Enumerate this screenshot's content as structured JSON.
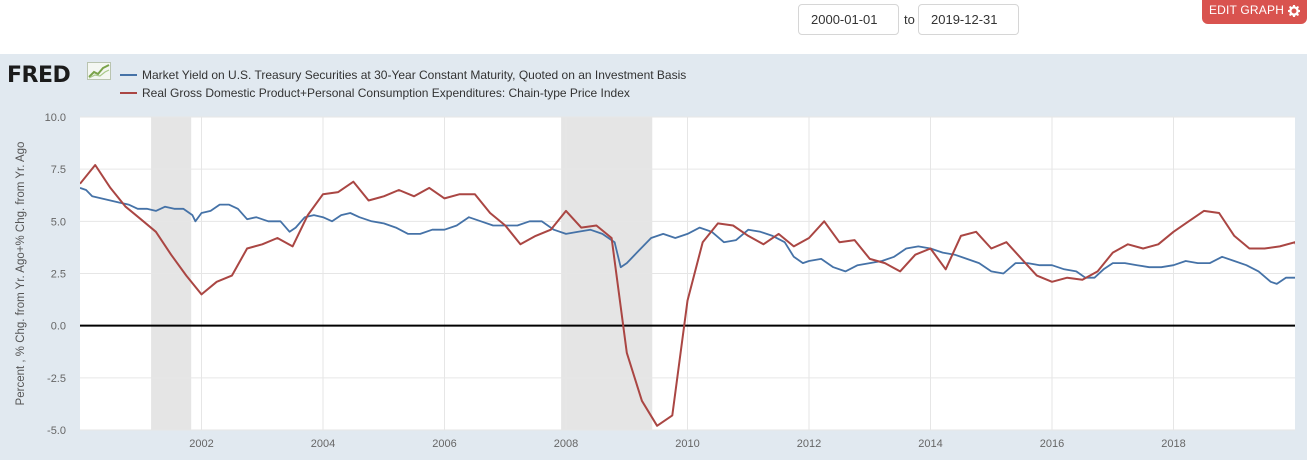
{
  "controls": {
    "start_date": "2000-01-01",
    "to_label": "to",
    "end_date": "2019-12-31",
    "edit_graph_label": "EDIT GRAPH"
  },
  "logo": {
    "text": "FRED",
    "icon": "chart-trend-icon"
  },
  "colors": {
    "series1": "#4572a7",
    "series2": "#aa4643",
    "background": "#e1e9f0",
    "recession": "#e5e5e5",
    "button": "#d9534f"
  },
  "chart_data": {
    "type": "line",
    "title": "",
    "xlabel": "",
    "ylabel": "Percent , % Chg. from Yr. Ago+% Chg. from Yr. Ago",
    "xlim": [
      2000.0,
      2020.0
    ],
    "ylim": [
      -5.0,
      10.0
    ],
    "y_ticks": [
      "10.0",
      "7.5",
      "5.0",
      "2.5",
      "0.0",
      "-2.5",
      "-5.0"
    ],
    "y_tick_values": [
      10,
      7.5,
      5,
      2.5,
      0,
      -2.5,
      -5
    ],
    "x_ticks": [
      "2002",
      "2004",
      "2006",
      "2008",
      "2010",
      "2012",
      "2014",
      "2016",
      "2018"
    ],
    "x_tick_values": [
      2002,
      2004,
      2006,
      2008,
      2010,
      2012,
      2014,
      2016,
      2018
    ],
    "grid": true,
    "reference_line": 0,
    "recessions": [
      [
        2001.17,
        2001.83
      ],
      [
        2007.92,
        2009.42
      ]
    ],
    "legend_position": "top-left",
    "series": [
      {
        "name": "Market Yield on U.S. Treasury Securities at 30-Year Constant Maturity, Quoted on an Investment Basis",
        "color": "#4572a7",
        "points": [
          [
            2000.0,
            6.6
          ],
          [
            2000.1,
            6.5
          ],
          [
            2000.2,
            6.2
          ],
          [
            2000.35,
            6.1
          ],
          [
            2000.5,
            6.0
          ],
          [
            2000.65,
            5.9
          ],
          [
            2000.8,
            5.8
          ],
          [
            2000.95,
            5.6
          ],
          [
            2001.1,
            5.6
          ],
          [
            2001.25,
            5.5
          ],
          [
            2001.4,
            5.7
          ],
          [
            2001.55,
            5.6
          ],
          [
            2001.7,
            5.6
          ],
          [
            2001.85,
            5.3
          ],
          [
            2001.9,
            5.0
          ],
          [
            2002.0,
            5.4
          ],
          [
            2002.15,
            5.5
          ],
          [
            2002.3,
            5.8
          ],
          [
            2002.45,
            5.8
          ],
          [
            2002.6,
            5.6
          ],
          [
            2002.75,
            5.1
          ],
          [
            2002.9,
            5.2
          ],
          [
            2003.1,
            5.0
          ],
          [
            2003.3,
            5.0
          ],
          [
            2003.45,
            4.5
          ],
          [
            2003.55,
            4.7
          ],
          [
            2003.7,
            5.2
          ],
          [
            2003.85,
            5.3
          ],
          [
            2004.0,
            5.2
          ],
          [
            2004.15,
            5.0
          ],
          [
            2004.3,
            5.3
          ],
          [
            2004.45,
            5.4
          ],
          [
            2004.6,
            5.2
          ],
          [
            2004.8,
            5.0
          ],
          [
            2005.0,
            4.9
          ],
          [
            2005.2,
            4.7
          ],
          [
            2005.4,
            4.4
          ],
          [
            2005.6,
            4.4
          ],
          [
            2005.8,
            4.6
          ],
          [
            2006.0,
            4.6
          ],
          [
            2006.2,
            4.8
          ],
          [
            2006.4,
            5.2
          ],
          [
            2006.6,
            5.0
          ],
          [
            2006.8,
            4.8
          ],
          [
            2007.0,
            4.8
          ],
          [
            2007.2,
            4.8
          ],
          [
            2007.4,
            5.0
          ],
          [
            2007.6,
            5.0
          ],
          [
            2007.8,
            4.6
          ],
          [
            2008.0,
            4.4
          ],
          [
            2008.2,
            4.5
          ],
          [
            2008.4,
            4.6
          ],
          [
            2008.6,
            4.4
          ],
          [
            2008.8,
            4.0
          ],
          [
            2008.9,
            2.8
          ],
          [
            2009.0,
            3.0
          ],
          [
            2009.2,
            3.6
          ],
          [
            2009.4,
            4.2
          ],
          [
            2009.6,
            4.4
          ],
          [
            2009.8,
            4.2
          ],
          [
            2010.0,
            4.4
          ],
          [
            2010.2,
            4.7
          ],
          [
            2010.4,
            4.5
          ],
          [
            2010.6,
            4.0
          ],
          [
            2010.8,
            4.1
          ],
          [
            2011.0,
            4.6
          ],
          [
            2011.2,
            4.5
          ],
          [
            2011.4,
            4.3
          ],
          [
            2011.6,
            4.0
          ],
          [
            2011.75,
            3.3
          ],
          [
            2011.9,
            3.0
          ],
          [
            2012.0,
            3.1
          ],
          [
            2012.2,
            3.2
          ],
          [
            2012.4,
            2.8
          ],
          [
            2012.6,
            2.6
          ],
          [
            2012.8,
            2.9
          ],
          [
            2013.0,
            3.0
          ],
          [
            2013.2,
            3.1
          ],
          [
            2013.4,
            3.3
          ],
          [
            2013.6,
            3.7
          ],
          [
            2013.8,
            3.8
          ],
          [
            2014.0,
            3.7
          ],
          [
            2014.2,
            3.5
          ],
          [
            2014.4,
            3.4
          ],
          [
            2014.6,
            3.2
          ],
          [
            2014.8,
            3.0
          ],
          [
            2015.0,
            2.6
          ],
          [
            2015.2,
            2.5
          ],
          [
            2015.4,
            3.0
          ],
          [
            2015.6,
            3.0
          ],
          [
            2015.8,
            2.9
          ],
          [
            2016.0,
            2.9
          ],
          [
            2016.2,
            2.7
          ],
          [
            2016.4,
            2.6
          ],
          [
            2016.55,
            2.3
          ],
          [
            2016.7,
            2.3
          ],
          [
            2016.85,
            2.7
          ],
          [
            2017.0,
            3.0
          ],
          [
            2017.2,
            3.0
          ],
          [
            2017.4,
            2.9
          ],
          [
            2017.6,
            2.8
          ],
          [
            2017.8,
            2.8
          ],
          [
            2018.0,
            2.9
          ],
          [
            2018.2,
            3.1
          ],
          [
            2018.4,
            3.0
          ],
          [
            2018.6,
            3.0
          ],
          [
            2018.8,
            3.3
          ],
          [
            2019.0,
            3.1
          ],
          [
            2019.2,
            2.9
          ],
          [
            2019.4,
            2.6
          ],
          [
            2019.6,
            2.1
          ],
          [
            2019.7,
            2.0
          ],
          [
            2019.85,
            2.3
          ],
          [
            2020.0,
            2.3
          ]
        ]
      },
      {
        "name": "Real Gross Domestic Product+Personal Consumption Expenditures: Chain-type Price Index",
        "color": "#aa4643",
        "points": [
          [
            2000.0,
            6.8
          ],
          [
            2000.25,
            7.7
          ],
          [
            2000.5,
            6.6
          ],
          [
            2000.75,
            5.7
          ],
          [
            2001.0,
            5.1
          ],
          [
            2001.25,
            4.5
          ],
          [
            2001.5,
            3.4
          ],
          [
            2001.75,
            2.4
          ],
          [
            2002.0,
            1.5
          ],
          [
            2002.25,
            2.1
          ],
          [
            2002.5,
            2.4
          ],
          [
            2002.75,
            3.7
          ],
          [
            2003.0,
            3.9
          ],
          [
            2003.25,
            4.2
          ],
          [
            2003.5,
            3.8
          ],
          [
            2003.75,
            5.3
          ],
          [
            2004.0,
            6.3
          ],
          [
            2004.25,
            6.4
          ],
          [
            2004.5,
            6.9
          ],
          [
            2004.75,
            6.0
          ],
          [
            2005.0,
            6.2
          ],
          [
            2005.25,
            6.5
          ],
          [
            2005.5,
            6.2
          ],
          [
            2005.75,
            6.6
          ],
          [
            2006.0,
            6.1
          ],
          [
            2006.25,
            6.3
          ],
          [
            2006.5,
            6.3
          ],
          [
            2006.75,
            5.4
          ],
          [
            2007.0,
            4.8
          ],
          [
            2007.25,
            3.9
          ],
          [
            2007.5,
            4.3
          ],
          [
            2007.75,
            4.6
          ],
          [
            2008.0,
            5.5
          ],
          [
            2008.25,
            4.7
          ],
          [
            2008.5,
            4.8
          ],
          [
            2008.75,
            4.2
          ],
          [
            2009.0,
            -1.3
          ],
          [
            2009.25,
            -3.6
          ],
          [
            2009.5,
            -4.8
          ],
          [
            2009.75,
            -4.3
          ],
          [
            2010.0,
            1.2
          ],
          [
            2010.25,
            4.0
          ],
          [
            2010.5,
            4.9
          ],
          [
            2010.75,
            4.8
          ],
          [
            2011.0,
            4.3
          ],
          [
            2011.25,
            3.9
          ],
          [
            2011.5,
            4.4
          ],
          [
            2011.75,
            3.8
          ],
          [
            2012.0,
            4.2
          ],
          [
            2012.25,
            5.0
          ],
          [
            2012.5,
            4.0
          ],
          [
            2012.75,
            4.1
          ],
          [
            2013.0,
            3.2
          ],
          [
            2013.25,
            3.0
          ],
          [
            2013.5,
            2.6
          ],
          [
            2013.75,
            3.4
          ],
          [
            2014.0,
            3.7
          ],
          [
            2014.25,
            2.7
          ],
          [
            2014.5,
            4.3
          ],
          [
            2014.75,
            4.5
          ],
          [
            2015.0,
            3.7
          ],
          [
            2015.25,
            4.0
          ],
          [
            2015.5,
            3.2
          ],
          [
            2015.75,
            2.4
          ],
          [
            2016.0,
            2.1
          ],
          [
            2016.25,
            2.3
          ],
          [
            2016.5,
            2.2
          ],
          [
            2016.75,
            2.6
          ],
          [
            2017.0,
            3.5
          ],
          [
            2017.25,
            3.9
          ],
          [
            2017.5,
            3.7
          ],
          [
            2017.75,
            3.9
          ],
          [
            2018.0,
            4.5
          ],
          [
            2018.25,
            5.0
          ],
          [
            2018.5,
            5.5
          ],
          [
            2018.75,
            5.4
          ],
          [
            2019.0,
            4.3
          ],
          [
            2019.25,
            3.7
          ],
          [
            2019.5,
            3.7
          ],
          [
            2019.75,
            3.8
          ],
          [
            2020.0,
            4.0
          ],
          [
            2020.2,
            2.6
          ]
        ]
      }
    ]
  }
}
